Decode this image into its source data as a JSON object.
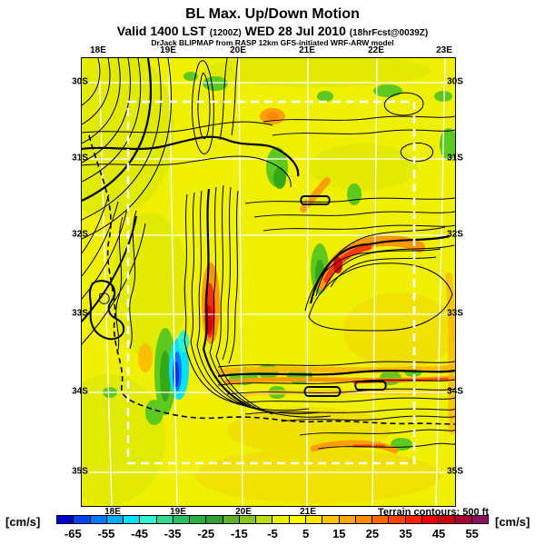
{
  "header": {
    "title": "BL Max. Up/Down Motion",
    "valid_prefix": "Valid 1400 LST ",
    "valid_z": "(1200Z)",
    "valid_date": " WED 28 Jul 2010 ",
    "fcst": "(18hrFcst@0039Z)",
    "model_line": "DrJack BLIPMAP from RASP 12km GFS-initiated WRF-ARW model"
  },
  "map": {
    "top_lon_labels": [
      "18E",
      "19E",
      "20E",
      "21E",
      "22E",
      "23E"
    ],
    "bottom_lon_labels": [
      "18E",
      "19E",
      "20E",
      "21E"
    ],
    "left_lat_labels": [
      "30S",
      "31S",
      "32S",
      "33S",
      "34S",
      "35S"
    ],
    "right_lat_labels": [
      "30S",
      "31S",
      "32S",
      "33S",
      "34S",
      "35S"
    ],
    "terrain_note": "Terrain contours: 500 ft"
  },
  "legend": {
    "unit_left": "[cm/s]",
    "unit_right": "[cm/s]",
    "tick_labels": [
      "-65",
      "-55",
      "-45",
      "-35",
      "-25",
      "-15",
      "-5",
      "5",
      "15",
      "25",
      "35",
      "45",
      "55"
    ],
    "cell_colors": [
      "#0000CC",
      "#0044EE",
      "#0077FF",
      "#00AAFF",
      "#00E0FF",
      "#30F0D0",
      "#30D890",
      "#28C060",
      "#28B040",
      "#30A030",
      "#60B028",
      "#8CC41E",
      "#BCDC14",
      "#E8F008",
      "#FFFF00",
      "#FFE400",
      "#FFC400",
      "#FFA500",
      "#FF8C00",
      "#FF6600",
      "#FF4400",
      "#FF2200",
      "#EE0000",
      "#CC0011",
      "#AA0033",
      "#8B1060"
    ]
  },
  "chart_data": {
    "type": "heatmap",
    "title": "BL Max. Up/Down Motion",
    "units": "cm/s",
    "colorbar_range": [
      -70,
      60
    ],
    "colorbar_step": 5,
    "colorbar_tick_values": [
      -65,
      -55,
      -45,
      -35,
      -25,
      -15,
      -5,
      5,
      15,
      25,
      35,
      45,
      55
    ],
    "x_axis": {
      "label_type": "longitude",
      "ticks": [
        "18E",
        "19E",
        "20E",
        "21E",
        "22E",
        "23E"
      ]
    },
    "y_axis": {
      "label_type": "latitude",
      "ticks": [
        "30S",
        "31S",
        "32S",
        "33S",
        "34S",
        "35S"
      ]
    },
    "annotations": [
      "Terrain contours: 500 ft"
    ],
    "legend_position": "bottom"
  }
}
